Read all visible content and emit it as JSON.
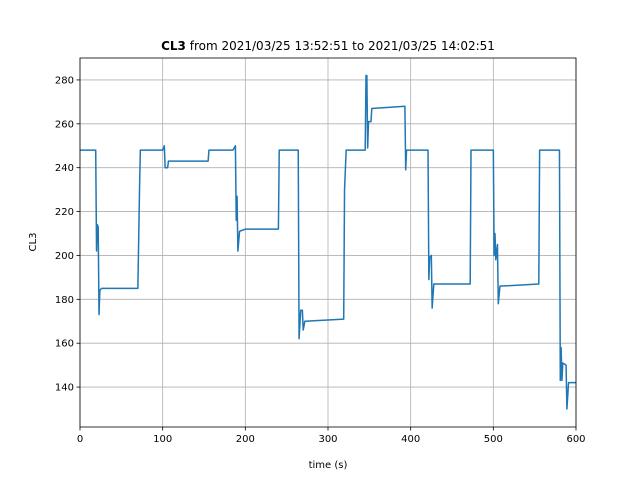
{
  "chart_data": {
    "type": "line",
    "title_name": "CL3",
    "title_range": "from 2021/03/25 13:52:51 to 2021/03/25 14:02:51",
    "xlabel": "time (s)",
    "ylabel": "CL3",
    "xlim": [
      0,
      600
    ],
    "ylim": [
      121.8,
      290
    ],
    "xticks": [
      0,
      100,
      200,
      300,
      400,
      500,
      600
    ],
    "yticks": [
      140,
      160,
      180,
      200,
      220,
      240,
      260,
      280
    ],
    "grid": true,
    "series": [
      {
        "color": "#1f77b4",
        "x": [
          0,
          18,
          19,
          20,
          21,
          22,
          23,
          24,
          26,
          70,
          72,
          73,
          100,
          102,
          103,
          106,
          107,
          155,
          156,
          185,
          188,
          189,
          190,
          191,
          193,
          200,
          240,
          241,
          264,
          265,
          267,
          269,
          270,
          272,
          319,
          320,
          322,
          345,
          346,
          347,
          348,
          349,
          352,
          353,
          393,
          394,
          395,
          421,
          422,
          423,
          425,
          426,
          428,
          472,
          473,
          500,
          501,
          502,
          503,
          505,
          506,
          508,
          555,
          556,
          580,
          581,
          582,
          583,
          584,
          588,
          589,
          591,
          600
        ],
        "values": [
          248,
          248,
          248,
          202,
          214,
          213,
          173,
          184,
          185,
          185,
          230,
          248,
          248,
          250,
          240,
          240,
          243,
          243,
          248,
          248,
          250,
          216,
          227,
          202,
          211,
          212,
          212,
          248,
          248,
          162,
          175,
          175,
          166,
          170,
          171,
          230,
          248,
          248,
          282,
          282,
          249,
          261,
          261,
          267,
          268,
          239,
          248,
          248,
          189,
          199,
          200,
          176,
          187,
          187,
          248,
          248,
          200,
          210,
          198,
          205,
          178,
          186,
          187,
          248,
          248,
          143,
          158,
          143,
          151,
          150,
          130,
          142,
          142
        ]
      }
    ]
  }
}
